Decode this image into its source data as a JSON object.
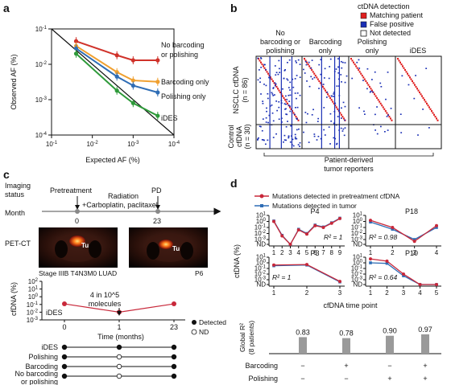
{
  "panel_labels": [
    "a",
    "b",
    "c",
    "d"
  ],
  "chart_data": [
    {
      "panel": "a",
      "type": "line",
      "xlabel": "Expected AF (%)",
      "ylabel": "Observed AF (%)",
      "x_scale": "log-reversed",
      "y_scale": "log",
      "xlim": [
        0.1,
        0.0001
      ],
      "ylim": [
        0.0001,
        0.1
      ],
      "xticks": [
        "10^-1",
        "10^-2",
        "10^-3",
        "10^-4"
      ],
      "yticks": [
        "10^-1",
        "10^-2",
        "10^-3",
        "10^-4"
      ],
      "x": [
        0.025,
        0.0025,
        0.001,
        0.00025
      ],
      "series": [
        {
          "name": "No barcoding or polishing",
          "color": "#d0322a",
          "values": [
            0.045,
            0.018,
            0.013,
            0.013
          ]
        },
        {
          "name": "Barcoding only",
          "color": "#f0a030",
          "values": [
            0.033,
            0.006,
            0.0035,
            0.0032
          ]
        },
        {
          "name": "Polishing only",
          "color": "#2f6db5",
          "values": [
            0.028,
            0.0045,
            0.0025,
            0.0016
          ]
        },
        {
          "name": "iDES",
          "color": "#2e9a3a",
          "values": [
            0.02,
            0.0018,
            0.0008,
            0.00035
          ]
        }
      ],
      "legend_lines": [
        "No barcoding",
        "or polishing",
        "Barcoding only",
        "Polishing only",
        "iDES"
      ]
    },
    {
      "panel": "b",
      "type": "heatmap",
      "legend_title": "ctDNA detection",
      "legend": [
        {
          "label": "Matching patient",
          "color": "#e02020"
        },
        {
          "label": "False positive",
          "color": "#1a2fb5"
        },
        {
          "label": "Not detected",
          "color": "#ffffff"
        }
      ],
      "columns": [
        "No barcoding or polishing",
        "Barcoding only",
        "Polishing only",
        "iDES"
      ],
      "column_label_lines": [
        [
          "No",
          "barcoding or",
          "polishing"
        ],
        [
          "Barcoding",
          "only"
        ],
        [
          "Polishing",
          "only"
        ],
        [
          "iDES"
        ]
      ],
      "rows": [
        "NSCLC cfDNA (n = 86)",
        "Control cfDNA (n = 30)"
      ],
      "row_label_lines": [
        [
          "NSCLC cfDNA",
          "(n = 86)"
        ],
        [
          "Control",
          "cfDNA",
          "(n = 30)"
        ]
      ],
      "xlabel_lines": [
        "Patient-derived",
        "tumor reporters"
      ]
    },
    {
      "panel": "c",
      "type": "line",
      "timeline": {
        "row_labels": [
          "Imaging",
          "status",
          "Month"
        ],
        "events": [
          "Pretreatment",
          "Radiation",
          "+Carboplatin, paclitaxel",
          "PD"
        ],
        "months": [
          "0",
          "23"
        ]
      },
      "images": {
        "label": "PET-CT",
        "tumor_tag": "Tu",
        "caption_left": "Stage IIIB T4N3M0 LUAD",
        "caption_right": "P6"
      },
      "ylabel": "cfDNA (%)",
      "y_scale": "log",
      "yticks": [
        "10^2",
        "10^1",
        "10^0",
        "10^-1",
        "10^-2",
        "10^-3"
      ],
      "xlabel": "Time (months)",
      "xticks": [
        "0",
        "1",
        "23"
      ],
      "x": [
        "0",
        "1",
        "23"
      ],
      "values": [
        0.12,
        0.01,
        0.12
      ],
      "annotation": [
        "4 in 10^5",
        "molecules"
      ],
      "series_label": "iDES",
      "legend": [
        "Detected",
        "ND"
      ],
      "detection_table": [
        {
          "row": "iDES",
          "label_lines": [
            "iDES"
          ],
          "detected": [
            true,
            true,
            true
          ]
        },
        {
          "row": "Polishing",
          "label_lines": [
            "Polishing"
          ],
          "detected": [
            true,
            false,
            true
          ]
        },
        {
          "row": "Barcoding",
          "label_lines": [
            "Barcoding"
          ],
          "detected": [
            true,
            false,
            true
          ]
        },
        {
          "row": "No barcoding or polishing",
          "label_lines": [
            "No barcoding",
            "or polishing"
          ],
          "detected": [
            true,
            false,
            true
          ]
        }
      ]
    },
    {
      "panel": "d",
      "type": "line",
      "legend": [
        {
          "name": "Mutations detected in pretreatment cfDNA",
          "color": "#c8283a"
        },
        {
          "name": "Mutations detected in tumor",
          "color": "#2f6db5"
        }
      ],
      "ylabel": "ctDNA (%)",
      "xlabel": "cfDNA time point",
      "y_scale": "log",
      "yticks_top": [
        "10^1",
        "10^0",
        "10^-1",
        "10^-2",
        "10^-3",
        "ND"
      ],
      "yticks_bottom": [
        "10^1",
        "10^0",
        "10^-1",
        "10^-2",
        "10^-3",
        "ND"
      ],
      "subplots": [
        {
          "patient": "P4",
          "r2": "R² = 1",
          "x": [
            "1",
            "2",
            "3",
            "4",
            "5",
            "6",
            "7",
            "8",
            "9"
          ],
          "red": [
            1,
            0.004,
            "ND",
            0.04,
            0.008,
            0.2,
            0.1,
            0.5,
            3
          ],
          "blue": [
            1.2,
            0.005,
            "ND",
            0.05,
            0.01,
            0.25,
            0.12,
            0.6,
            3.5
          ]
        },
        {
          "patient": "P18",
          "r2": "R² = 0.98",
          "x": [
            "1",
            "2",
            "3",
            "4"
          ],
          "red": [
            1.5,
            0.1,
            0.0005,
            0.2
          ],
          "blue": [
            0.8,
            0.05,
            0.001,
            0.1
          ]
        },
        {
          "patient": "P3",
          "r2": "R² = 1",
          "x": [
            "1",
            "2",
            "3"
          ],
          "red": [
            0.4,
            0.5,
            0.0005
          ],
          "blue": [
            0.3,
            0.4,
            0.0004
          ]
        },
        {
          "patient": "P10",
          "r2": "R² = 0.64",
          "x": [
            "1",
            "2",
            "3",
            "4",
            "5"
          ],
          "red": [
            5,
            2,
            0.01,
            "ND",
            "ND"
          ],
          "blue": [
            1,
            0.8,
            0.005,
            "ND",
            "ND"
          ]
        }
      ],
      "bar": {
        "type": "bar",
        "ylabel_lines": [
          "Global R²",
          "(8 patients)"
        ],
        "categories": [
          "-/-",
          "+/-",
          "-/+",
          "+/+"
        ],
        "values": [
          0.83,
          0.78,
          0.9,
          0.97
        ],
        "value_labels": [
          "0.83",
          "0.78",
          "0.90",
          "0.97"
        ],
        "row_labels": [
          "Barcoding",
          "Polishing"
        ],
        "barcoding": [
          "−",
          "+",
          "−",
          "+"
        ],
        "polishing": [
          "−",
          "−",
          "+",
          "+"
        ],
        "color": "#9a9a9a"
      }
    }
  ]
}
